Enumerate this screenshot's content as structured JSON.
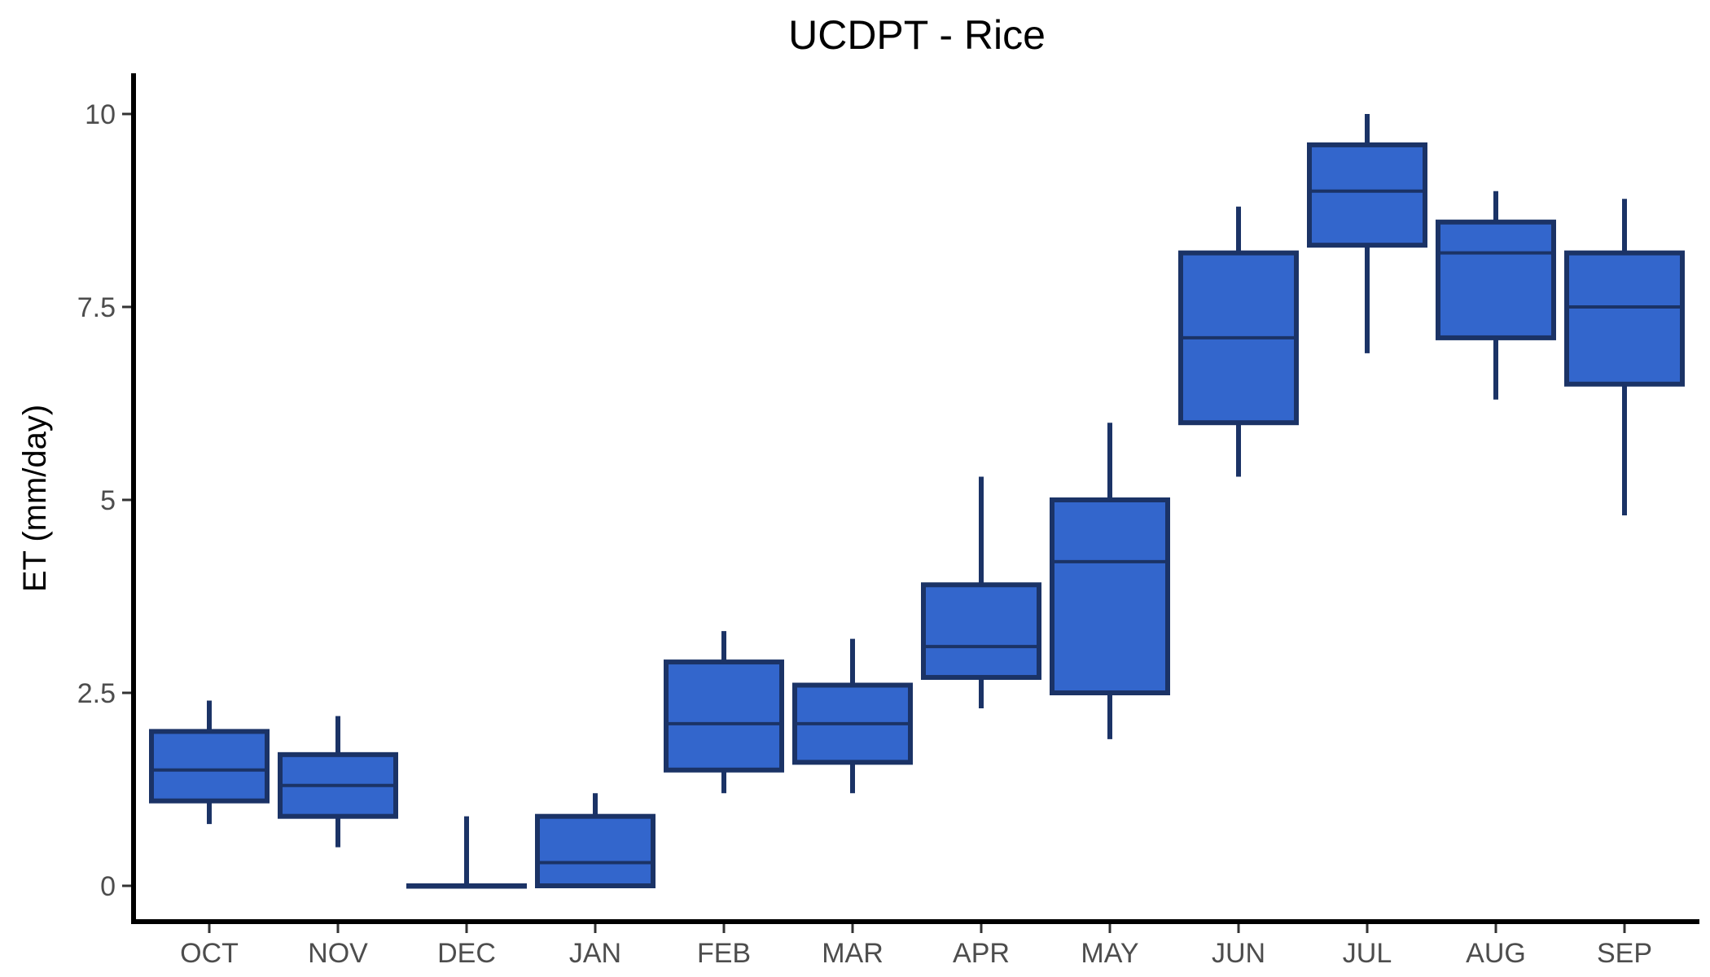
{
  "chart_data": {
    "type": "boxplot",
    "title": "UCDPT - Rice",
    "xlabel": "",
    "ylabel": "ET (mm/day)",
    "ylim": [
      -0.5,
      10.5
    ],
    "yticks": [
      0,
      2.5,
      5,
      7.5,
      10
    ],
    "ytick_labels": [
      "0",
      "2.5",
      "5",
      "7.5",
      "10"
    ],
    "grid": false,
    "colors": {
      "box_fill": "#3366cc",
      "box_stroke": "#1b3366"
    },
    "categories": [
      "OCT",
      "NOV",
      "DEC",
      "JAN",
      "FEB",
      "MAR",
      "APR",
      "MAY",
      "JUN",
      "JUL",
      "AUG",
      "SEP"
    ],
    "boxes": [
      {
        "min": 0.8,
        "q1": 1.1,
        "median": 1.5,
        "q3": 2.0,
        "max": 2.4
      },
      {
        "min": 0.5,
        "q1": 0.9,
        "median": 1.3,
        "q3": 1.7,
        "max": 2.2
      },
      {
        "min": 0.0,
        "q1": 0.0,
        "median": 0.0,
        "q3": 0.0,
        "max": 0.9
      },
      {
        "min": 0.0,
        "q1": 0.0,
        "median": 0.3,
        "q3": 0.9,
        "max": 1.2
      },
      {
        "min": 1.2,
        "q1": 1.5,
        "median": 2.1,
        "q3": 2.9,
        "max": 3.3
      },
      {
        "min": 1.2,
        "q1": 1.6,
        "median": 2.1,
        "q3": 2.6,
        "max": 3.2
      },
      {
        "min": 2.3,
        "q1": 2.7,
        "median": 3.1,
        "q3": 3.9,
        "max": 5.3
      },
      {
        "min": 1.9,
        "q1": 2.5,
        "median": 4.2,
        "q3": 5.0,
        "max": 6.0
      },
      {
        "min": 5.3,
        "q1": 6.0,
        "median": 7.1,
        "q3": 8.2,
        "max": 8.8
      },
      {
        "min": 6.9,
        "q1": 8.3,
        "median": 9.0,
        "q3": 9.6,
        "max": 10.0
      },
      {
        "min": 6.3,
        "q1": 7.1,
        "median": 8.2,
        "q3": 8.6,
        "max": 9.0
      },
      {
        "min": 4.8,
        "q1": 6.5,
        "median": 7.5,
        "q3": 8.2,
        "max": 8.9
      }
    ]
  }
}
